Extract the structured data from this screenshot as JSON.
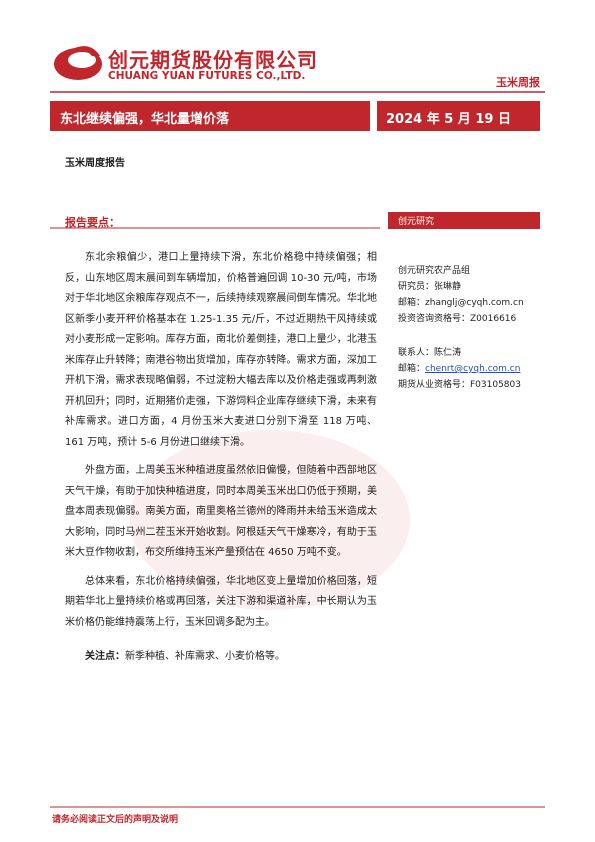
{
  "header": {
    "company_cn": "创元期货股份有限公司",
    "company_en": "CHUANG YUAN FUTURES CO.,LTD.",
    "report_type": "玉米周报"
  },
  "banner": {
    "title": "东北继续偏强，华北量增价落",
    "date": "2024 年 5 月 19 日"
  },
  "subtitle": "玉米周度报告",
  "section_label": "报告要点：",
  "paragraphs": [
    "东北余粮偏少，港口上量持续下滑，东北价格稳中持续偏强；相反，山东地区周末晨间到车辆增加，价格普遍回调 10-30 元/吨，市场对于华北地区余粮库存观点不一，后续持续观察晨间倒车情况。华北地区新季小麦开秤价格基本在 1.25-1.35 元/斤，不过近期热干风持续或对小麦形成一定影响。库存方面，南北价差倒挂，港口上量少，北港玉米库存止升转降；南港谷物出货增加，库存亦转降。需求方面，深加工开机下滑，需求表现略偏弱，不过淀粉大幅去库以及价格走强或再刺激开机回升；同时，近期猪价走强，下游饲料企业库存继续下滑，未来有补库需求。进口方面，4 月份玉米大麦进口分别下滑至 118 万吨、161 万吨，预计 5-6 月份进口继续下滑。",
    "外盘方面，上周美玉米种植进度虽然依旧偏慢，但随着中西部地区天气干燥，有助于加快种植进度，同时本周美玉米出口仍低于预期，美盘本周表现偏弱。南美方面，南里奥格兰德州的降雨并未给玉米造成太大影响，同时马州二茬玉米开始收割。阿根廷天气干燥寒冷，有助于玉米大豆作物收割，布交所维持玉米产量预估在 4650 万吨不变。",
    "总体来看，东北价格持续偏强，华北地区变上量增加价格回落，短期若华北上量持续价格或再回落，关注下游和渠道补库，中长期认为玉米价格仍能维持震荡上行，玉米回调多配为主。"
  ],
  "focus": {
    "label": "关注点：",
    "text": "新季种植、补库需求、小麦价格等。"
  },
  "sidebar": {
    "heading": "创元研究",
    "group": "创元研究农产品组",
    "researcher": "研究员：张琳静",
    "researcher_email_label": "邮箱：",
    "researcher_email": "zhanglj@cyqh.com.cn",
    "researcher_license": "投资咨询资格号：Z0016616",
    "contact": "联系人：陈仁涛",
    "contact_email_label": "邮箱：",
    "contact_email": "chenrt@cyqh.com.cn",
    "contact_license": "期货从业资格号：F03105803"
  },
  "footer": "请务必阅读正文后的声明及说明"
}
